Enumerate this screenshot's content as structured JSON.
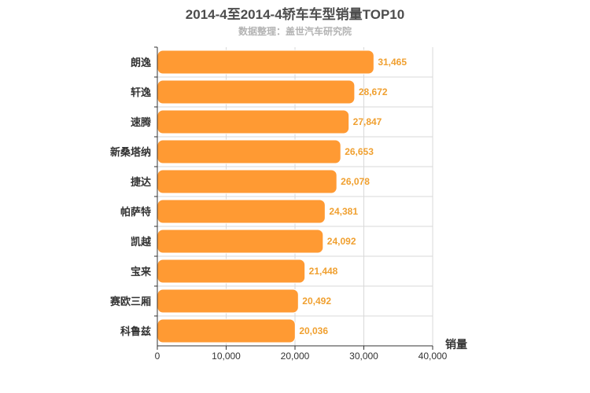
{
  "chart_data": {
    "type": "bar",
    "orientation": "horizontal",
    "title": "2014-4至2014-4轿车车型销量TOP10",
    "subtitle": "数据整理：盖世汽车研究院",
    "xlabel": "销量",
    "ylabel": "",
    "categories": [
      "朗逸",
      "轩逸",
      "速腾",
      "新桑塔纳",
      "捷达",
      "帕萨特",
      "凯越",
      "宝来",
      "赛欧三厢",
      "科鲁兹"
    ],
    "values": [
      31465,
      28672,
      27847,
      26653,
      26078,
      24381,
      24092,
      21448,
      20492,
      20036
    ],
    "value_labels": [
      "31,465",
      "28,672",
      "27,847",
      "26,653",
      "26,078",
      "24,381",
      "24,092",
      "21,448",
      "20,492",
      "20,036"
    ],
    "xlim": [
      0,
      40000
    ],
    "xticks": [
      0,
      10000,
      20000,
      30000,
      40000
    ],
    "xtick_labels": [
      "0",
      "10,000",
      "20,000",
      "30,000",
      "40,000"
    ],
    "grid": true,
    "legend": "none",
    "colors": {
      "bar": "#ff9a33",
      "bar_stroke": "#ffffff",
      "value_label": "#f0a030",
      "grid": "#d9d9d9",
      "axis": "#333333",
      "category_label": "#333333"
    }
  }
}
